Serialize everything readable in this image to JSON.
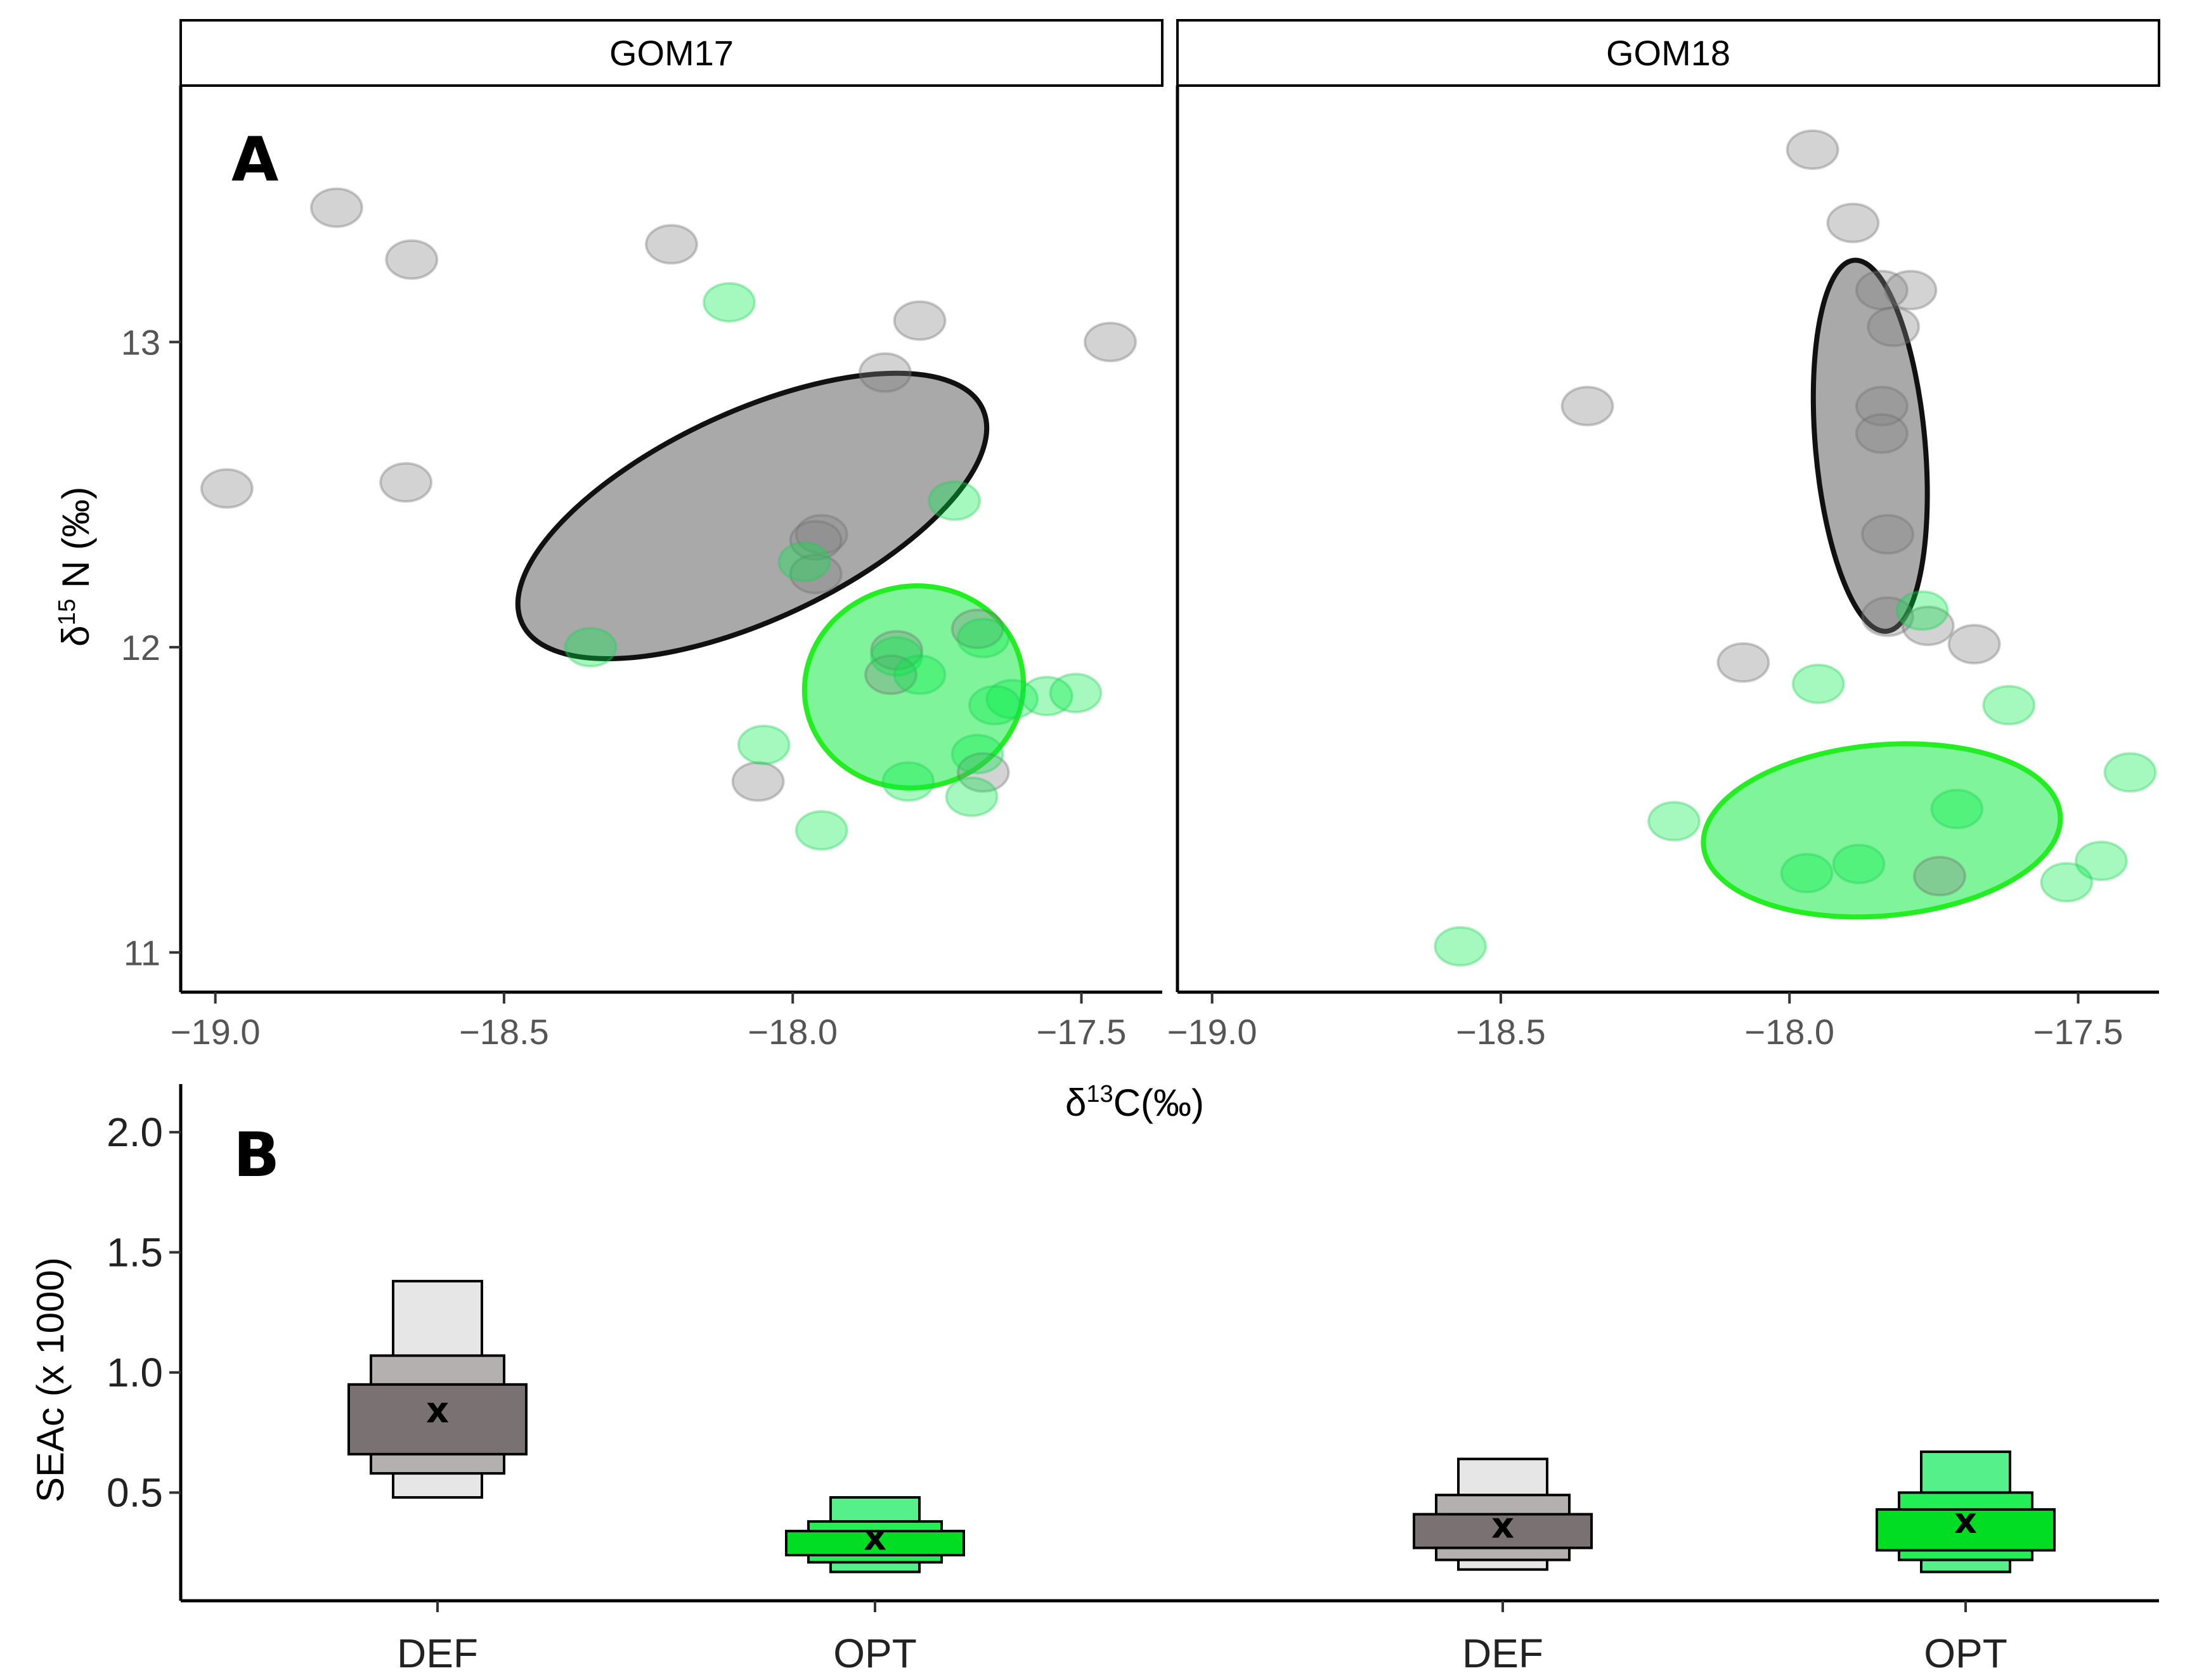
{
  "chart_data": [
    {
      "panel": "A",
      "type": "scatter",
      "xlabel": "δ13C(‰)",
      "ylabel": "δ15N (‰)",
      "xlim": [
        -19.06,
        -17.36
      ],
      "ylim": [
        10.87,
        13.84
      ],
      "xticks": [
        -19.0,
        -18.5,
        -18.0,
        -17.5
      ],
      "xtick_labels": [
        "−19.0",
        "−18.5",
        "−18.0",
        "−17.5"
      ],
      "yticks": [
        11,
        12,
        13
      ],
      "ytick_labels": [
        "11",
        "12",
        "13"
      ],
      "colors": {
        "DEF": "#808080",
        "OPT": "#00ee44",
        "DEF_ellipse": "#8c8c8c",
        "OPT_ellipse": "#55f07a",
        "DEF_edge": "#111111",
        "OPT_edge": "#22ee22"
      },
      "facets": [
        {
          "title": "GOM17",
          "ellipses": [
            {
              "group": "DEF",
              "cx": -18.07,
              "cy": 12.43,
              "rx": 0.44,
              "ry": 0.34,
              "angle": -25
            },
            {
              "group": "OPT",
              "cx": -17.79,
              "cy": 11.87,
              "rx": 0.19,
              "ry": 0.33,
              "angle": -10
            }
          ],
          "series": [
            {
              "name": "DEF",
              "points": [
                [
                  -18.79,
                  13.44
                ],
                [
                  -18.66,
                  13.27
                ],
                [
                  -18.21,
                  13.32
                ],
                [
                  -17.78,
                  13.07
                ],
                [
                  -17.45,
                  13.0
                ],
                [
                  -17.84,
                  12.9
                ],
                [
                  -18.98,
                  12.52
                ],
                [
                  -18.67,
                  12.54
                ],
                [
                  -17.95,
                  12.37
                ],
                [
                  -17.96,
                  12.35
                ],
                [
                  -17.96,
                  12.24
                ],
                [
                  -17.68,
                  12.06
                ],
                [
                  -17.82,
                  11.99
                ],
                [
                  -17.83,
                  11.91
                ],
                [
                  -17.67,
                  11.59
                ],
                [
                  -18.06,
                  11.56
                ]
              ]
            },
            {
              "name": "OPT",
              "points": [
                [
                  -18.11,
                  13.13
                ],
                [
                  -17.72,
                  12.48
                ],
                [
                  -17.98,
                  12.28
                ],
                [
                  -18.35,
                  12.0
                ],
                [
                  -17.67,
                  12.03
                ],
                [
                  -17.82,
                  11.97
                ],
                [
                  -17.78,
                  11.91
                ],
                [
                  -17.62,
                  11.83
                ],
                [
                  -17.65,
                  11.81
                ],
                [
                  -17.56,
                  11.84
                ],
                [
                  -17.51,
                  11.85
                ],
                [
                  -18.05,
                  11.68
                ],
                [
                  -17.68,
                  11.65
                ],
                [
                  -17.8,
                  11.56
                ],
                [
                  -17.69,
                  11.51
                ],
                [
                  -17.95,
                  11.4
                ]
              ]
            }
          ]
        },
        {
          "title": "GOM18",
          "ellipses": [
            {
              "group": "DEF",
              "cx": -17.86,
              "cy": 12.66,
              "rx": 0.095,
              "ry": 0.61,
              "angle": -5
            },
            {
              "group": "OPT",
              "cx": -17.84,
              "cy": 11.4,
              "rx": 0.31,
              "ry": 0.28,
              "angle": -5
            }
          ],
          "series": [
            {
              "name": "DEF",
              "points": [
                [
                  -17.96,
                  13.63
                ],
                [
                  -17.89,
                  13.39
                ],
                [
                  -17.84,
                  13.17
                ],
                [
                  -17.79,
                  13.17
                ],
                [
                  -17.82,
                  13.05
                ],
                [
                  -18.35,
                  12.79
                ],
                [
                  -17.84,
                  12.79
                ],
                [
                  -17.84,
                  12.7
                ],
                [
                  -17.83,
                  12.37
                ],
                [
                  -17.83,
                  12.1
                ],
                [
                  -17.76,
                  12.07
                ],
                [
                  -17.68,
                  12.01
                ],
                [
                  -18.08,
                  11.95
                ],
                [
                  -17.74,
                  11.25
                ]
              ]
            },
            {
              "name": "OPT",
              "points": [
                [
                  -17.77,
                  12.12
                ],
                [
                  -17.95,
                  11.88
                ],
                [
                  -17.62,
                  11.81
                ],
                [
                  -17.41,
                  11.59
                ],
                [
                  -17.71,
                  11.47
                ],
                [
                  -18.2,
                  11.43
                ],
                [
                  -17.97,
                  11.26
                ],
                [
                  -17.88,
                  11.29
                ],
                [
                  -17.46,
                  11.3
                ],
                [
                  -17.52,
                  11.23
                ],
                [
                  -18.57,
                  11.02
                ]
              ]
            }
          ]
        }
      ]
    },
    {
      "panel": "B",
      "type": "boxplot-credible-intervals",
      "ylabel": "SEAc (x 1000)",
      "ylim": [
        0.05,
        2.2
      ],
      "yticks": [
        0.5,
        1.0,
        1.5,
        2.0
      ],
      "ytick_labels": [
        "0.5",
        "1.0",
        "1.5",
        "2.0"
      ],
      "categories": [
        "DEF",
        "OPT",
        "DEF",
        "OPT"
      ],
      "marker": "x",
      "boxes": [
        {
          "group": "DEF",
          "mode": 0.84,
          "ci50": [
            0.66,
            0.95
          ],
          "ci75": [
            0.58,
            1.07
          ],
          "ci95": [
            0.48,
            1.38
          ]
        },
        {
          "group": "OPT",
          "mode": 0.31,
          "ci50": [
            0.24,
            0.34
          ],
          "ci75": [
            0.21,
            0.38
          ],
          "ci95": [
            0.17,
            0.48
          ]
        },
        {
          "group": "DEF",
          "mode": 0.36,
          "ci50": [
            0.27,
            0.41
          ],
          "ci75": [
            0.22,
            0.49
          ],
          "ci95": [
            0.18,
            0.64
          ]
        },
        {
          "group": "OPT",
          "mode": 0.38,
          "ci50": [
            0.26,
            0.43
          ],
          "ci75": [
            0.22,
            0.5
          ],
          "ci95": [
            0.17,
            0.67
          ]
        }
      ],
      "box_colors": {
        "DEF": {
          "ci50": "#7a7272",
          "ci75": "#b5b0b0",
          "ci95": "#e6e6e6"
        },
        "OPT": {
          "ci50": "#00dd22",
          "ci75": "#22ee55",
          "ci95": "#55f08a"
        }
      }
    }
  ]
}
